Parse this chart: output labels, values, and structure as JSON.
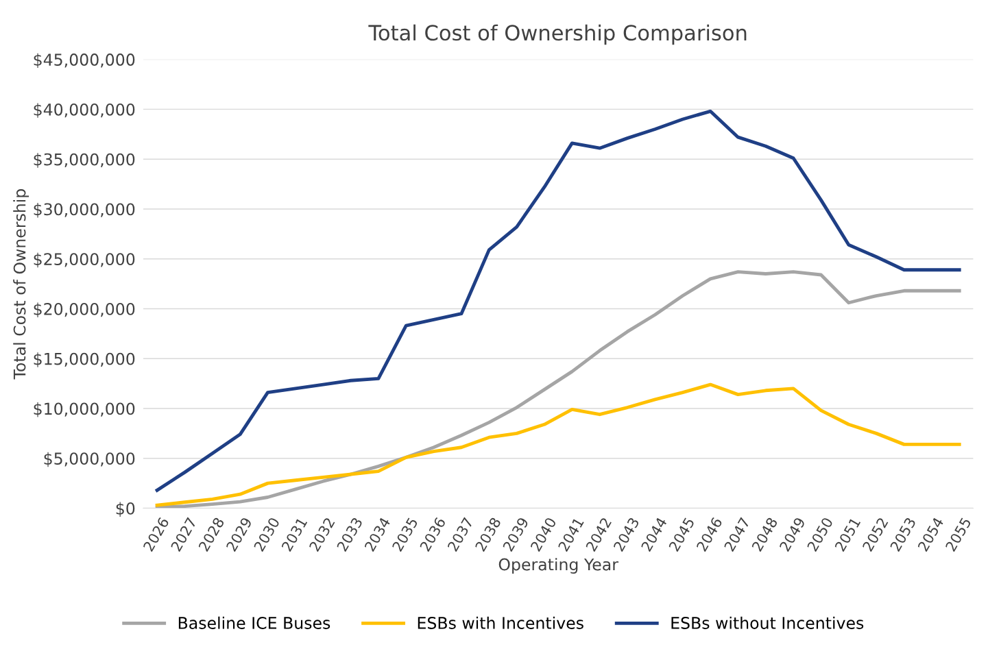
{
  "chart_data": {
    "type": "line",
    "title": "Total Cost of Ownership Comparison",
    "xlabel": "Operating Year",
    "ylabel": "Total Cost of Ownership",
    "categories": [
      "2026",
      "2027",
      "2028",
      "2029",
      "2030",
      "2031",
      "2032",
      "2033",
      "2034",
      "2035",
      "2036",
      "2037",
      "2038",
      "2039",
      "2040",
      "2041",
      "2042",
      "2043",
      "2044",
      "2045",
      "2046",
      "2047",
      "2048",
      "2049",
      "2050",
      "2051",
      "2052",
      "2053",
      "2054",
      "2055"
    ],
    "series": [
      {
        "name": "Baseline ICE Buses",
        "color": "#a5a5a5",
        "values": [
          100000,
          200000,
          400000,
          650000,
          1100000,
          1900000,
          2700000,
          3400000,
          4200000,
          5100000,
          6100000,
          7300000,
          8600000,
          10100000,
          11900000,
          13700000,
          15800000,
          17700000,
          19400000,
          21300000,
          23000000,
          23700000,
          23500000,
          23700000,
          23400000,
          20600000,
          21300000,
          21800000,
          21800000,
          21800000
        ]
      },
      {
        "name": "ESBs with Incentives",
        "color": "#ffc000",
        "values": [
          300000,
          600000,
          900000,
          1400000,
          2500000,
          2800000,
          3100000,
          3400000,
          3700000,
          5100000,
          5700000,
          6100000,
          7100000,
          7500000,
          8400000,
          9900000,
          9400000,
          10100000,
          10900000,
          11600000,
          12400000,
          11400000,
          11800000,
          12000000,
          9800000,
          8400000,
          7500000,
          6400000,
          6400000,
          6400000
        ]
      },
      {
        "name": "ESBs without Incentives",
        "color": "#1f3f85",
        "values": [
          1800000,
          3600000,
          5500000,
          7400000,
          11600000,
          12000000,
          12400000,
          12800000,
          13000000,
          18300000,
          18900000,
          19500000,
          25900000,
          28200000,
          32200000,
          36600000,
          36100000,
          37100000,
          38000000,
          39000000,
          39800000,
          37200000,
          36300000,
          35100000,
          30900000,
          26400000,
          25200000,
          23900000,
          23900000,
          23900000
        ]
      }
    ],
    "ylim": [
      0,
      45000000
    ],
    "yticks": [
      {
        "value": 0,
        "label": "$0"
      },
      {
        "value": 5000000,
        "label": "$5,000,000"
      },
      {
        "value": 10000000,
        "label": "$10,000,000"
      },
      {
        "value": 15000000,
        "label": "$15,000,000"
      },
      {
        "value": 20000000,
        "label": "$20,000,000"
      },
      {
        "value": 25000000,
        "label": "$25,000,000"
      },
      {
        "value": 30000000,
        "label": "$30,000,000"
      },
      {
        "value": 35000000,
        "label": "$35,000,000"
      },
      {
        "value": 40000000,
        "label": "$40,000,000"
      },
      {
        "value": 45000000,
        "label": "$45,000,000"
      }
    ],
    "grid": "y",
    "legend": "bottom",
    "marker": "none",
    "line_style": "solid"
  }
}
